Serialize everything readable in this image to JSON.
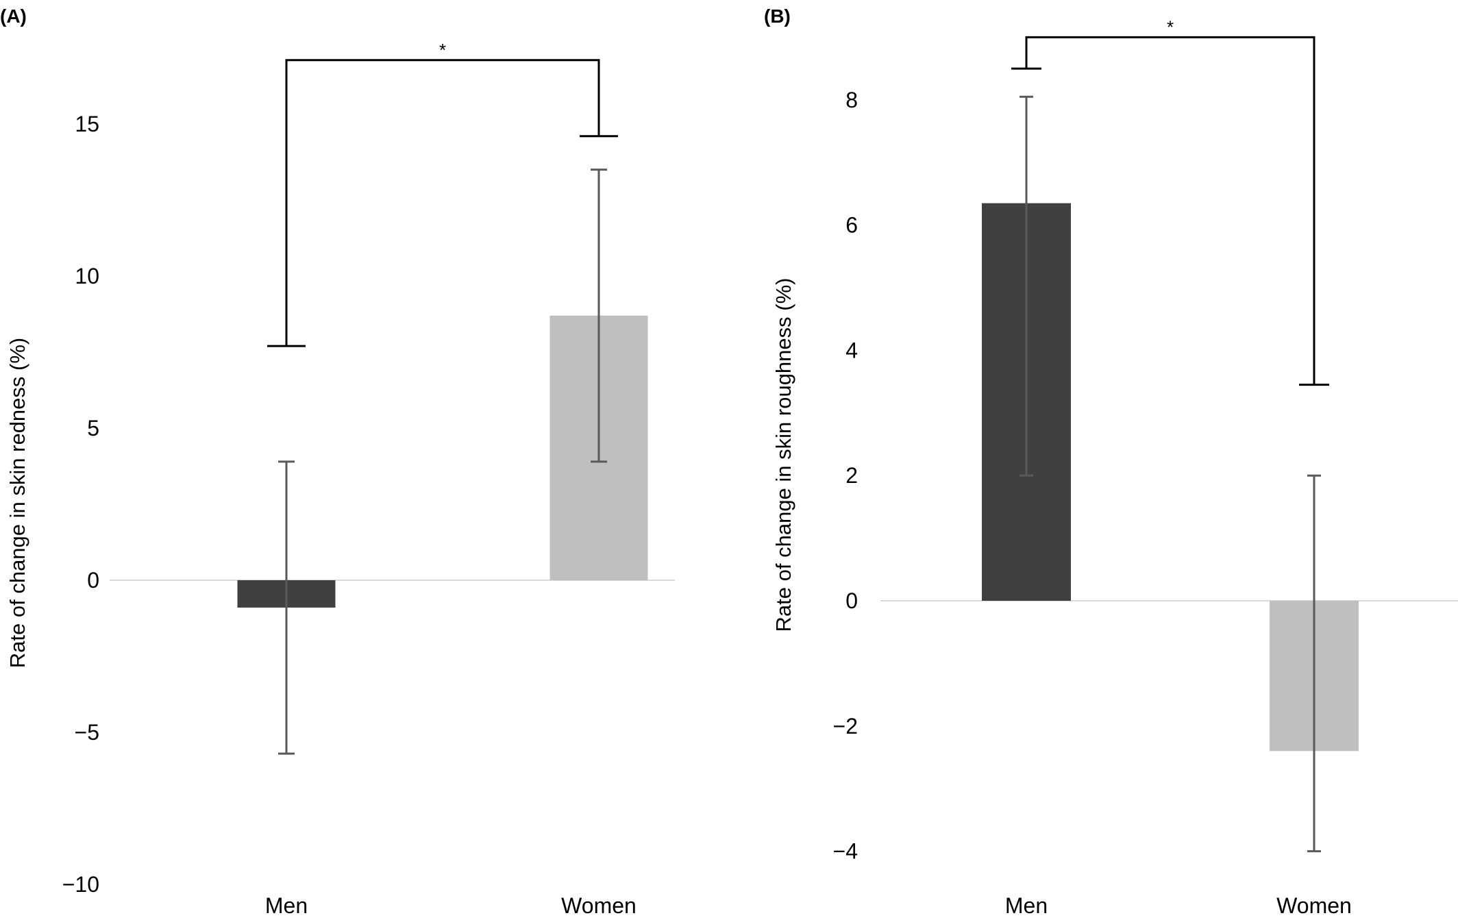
{
  "chart_data": [
    {
      "type": "bar",
      "panel": "(A)",
      "categories": [
        "Men",
        "Women"
      ],
      "values": [
        -0.9,
        8.7
      ],
      "error_low": [
        -5.7,
        3.9
      ],
      "error_high": [
        3.9,
        13.5
      ],
      "ylabel": "Rate of change in skin redness (%)",
      "ylim": [
        -10,
        15
      ],
      "yticks": [
        15,
        10,
        5,
        0,
        -5,
        -10
      ],
      "ytick_labels": [
        "15",
        "10",
        "5",
        "0",
        "−5",
        "−10"
      ],
      "colors": [
        "#404040",
        "#bfbfbf"
      ],
      "significance": {
        "label": "*",
        "left_y": 7.7,
        "right_y": 14.6,
        "top_y": 17.1
      }
    },
    {
      "type": "bar",
      "panel": "(B)",
      "categories": [
        "Men",
        "Women"
      ],
      "values": [
        6.35,
        -2.4
      ],
      "error_low": [
        2.0,
        -4.0
      ],
      "error_high": [
        8.05,
        2.0
      ],
      "ylabel": "Rate of change in skin roughness (%)",
      "ylim": [
        -4,
        8
      ],
      "yticks": [
        8,
        6,
        4,
        2,
        0,
        -2,
        -4
      ],
      "ytick_labels": [
        "8",
        "6",
        "4",
        "2",
        "0",
        "−2",
        "−4"
      ],
      "colors": [
        "#404040",
        "#bfbfbf"
      ],
      "significance": {
        "label": "*",
        "left_y": 8.5,
        "right_y": 3.45,
        "top_y": 9.0
      }
    }
  ]
}
